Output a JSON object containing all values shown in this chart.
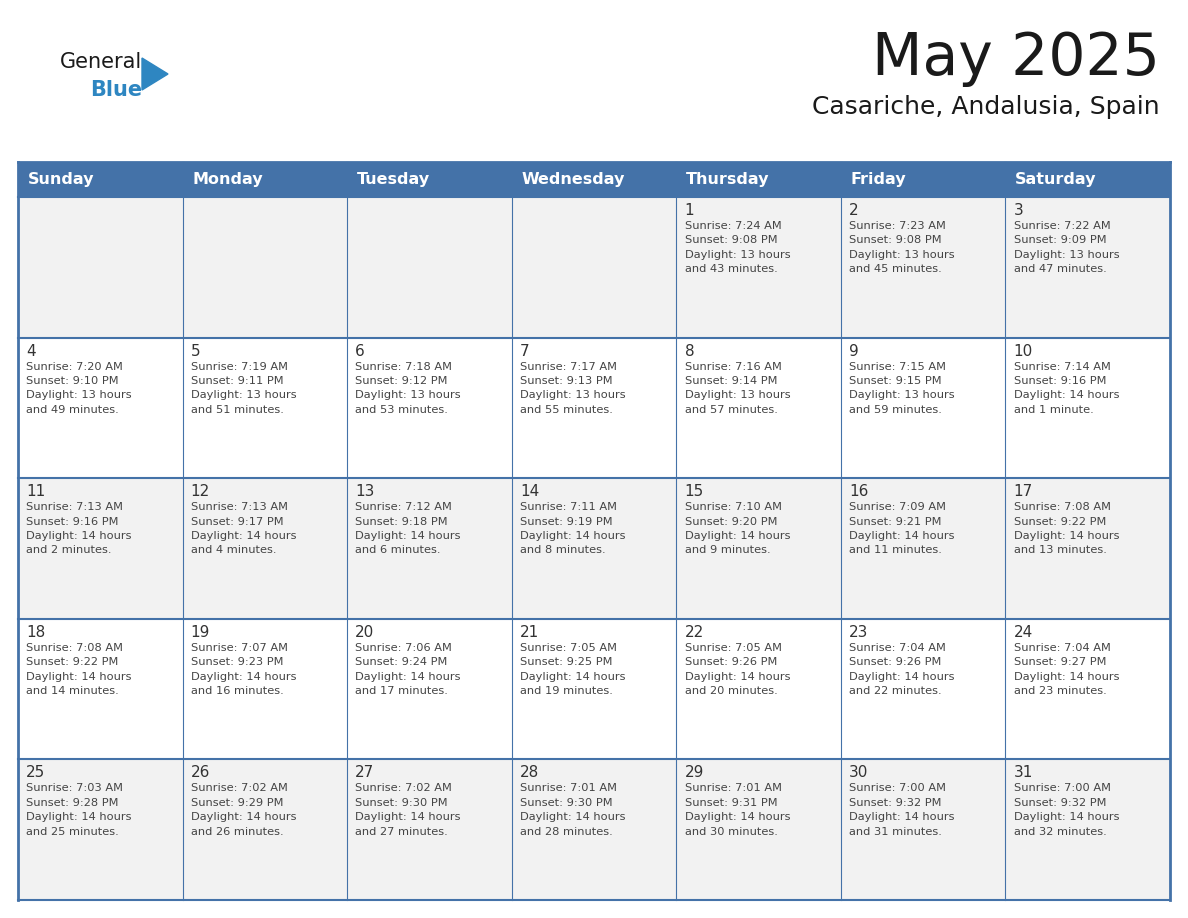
{
  "title": "May 2025",
  "subtitle": "Casariche, Andalusia, Spain",
  "header_bg": "#4472a8",
  "header_text": "#ffffff",
  "row_bg_light": "#f2f2f2",
  "row_bg_white": "#ffffff",
  "border_color": "#4472a8",
  "sep_color": "#4472a8",
  "day_headers": [
    "Sunday",
    "Monday",
    "Tuesday",
    "Wednesday",
    "Thursday",
    "Friday",
    "Saturday"
  ],
  "title_color": "#1a1a1a",
  "subtitle_color": "#1a1a1a",
  "logo_general_color": "#1a1a1a",
  "logo_blue_color": "#2e86c1",
  "logo_triangle_color": "#2e86c1",
  "text_day_color": "#333333",
  "text_info_color": "#444444",
  "weeks": [
    [
      {
        "day": "",
        "text": ""
      },
      {
        "day": "",
        "text": ""
      },
      {
        "day": "",
        "text": ""
      },
      {
        "day": "",
        "text": ""
      },
      {
        "day": "1",
        "text": "Sunrise: 7:24 AM\nSunset: 9:08 PM\nDaylight: 13 hours\nand 43 minutes."
      },
      {
        "day": "2",
        "text": "Sunrise: 7:23 AM\nSunset: 9:08 PM\nDaylight: 13 hours\nand 45 minutes."
      },
      {
        "day": "3",
        "text": "Sunrise: 7:22 AM\nSunset: 9:09 PM\nDaylight: 13 hours\nand 47 minutes."
      }
    ],
    [
      {
        "day": "4",
        "text": "Sunrise: 7:20 AM\nSunset: 9:10 PM\nDaylight: 13 hours\nand 49 minutes."
      },
      {
        "day": "5",
        "text": "Sunrise: 7:19 AM\nSunset: 9:11 PM\nDaylight: 13 hours\nand 51 minutes."
      },
      {
        "day": "6",
        "text": "Sunrise: 7:18 AM\nSunset: 9:12 PM\nDaylight: 13 hours\nand 53 minutes."
      },
      {
        "day": "7",
        "text": "Sunrise: 7:17 AM\nSunset: 9:13 PM\nDaylight: 13 hours\nand 55 minutes."
      },
      {
        "day": "8",
        "text": "Sunrise: 7:16 AM\nSunset: 9:14 PM\nDaylight: 13 hours\nand 57 minutes."
      },
      {
        "day": "9",
        "text": "Sunrise: 7:15 AM\nSunset: 9:15 PM\nDaylight: 13 hours\nand 59 minutes."
      },
      {
        "day": "10",
        "text": "Sunrise: 7:14 AM\nSunset: 9:16 PM\nDaylight: 14 hours\nand 1 minute."
      }
    ],
    [
      {
        "day": "11",
        "text": "Sunrise: 7:13 AM\nSunset: 9:16 PM\nDaylight: 14 hours\nand 2 minutes."
      },
      {
        "day": "12",
        "text": "Sunrise: 7:13 AM\nSunset: 9:17 PM\nDaylight: 14 hours\nand 4 minutes."
      },
      {
        "day": "13",
        "text": "Sunrise: 7:12 AM\nSunset: 9:18 PM\nDaylight: 14 hours\nand 6 minutes."
      },
      {
        "day": "14",
        "text": "Sunrise: 7:11 AM\nSunset: 9:19 PM\nDaylight: 14 hours\nand 8 minutes."
      },
      {
        "day": "15",
        "text": "Sunrise: 7:10 AM\nSunset: 9:20 PM\nDaylight: 14 hours\nand 9 minutes."
      },
      {
        "day": "16",
        "text": "Sunrise: 7:09 AM\nSunset: 9:21 PM\nDaylight: 14 hours\nand 11 minutes."
      },
      {
        "day": "17",
        "text": "Sunrise: 7:08 AM\nSunset: 9:22 PM\nDaylight: 14 hours\nand 13 minutes."
      }
    ],
    [
      {
        "day": "18",
        "text": "Sunrise: 7:08 AM\nSunset: 9:22 PM\nDaylight: 14 hours\nand 14 minutes."
      },
      {
        "day": "19",
        "text": "Sunrise: 7:07 AM\nSunset: 9:23 PM\nDaylight: 14 hours\nand 16 minutes."
      },
      {
        "day": "20",
        "text": "Sunrise: 7:06 AM\nSunset: 9:24 PM\nDaylight: 14 hours\nand 17 minutes."
      },
      {
        "day": "21",
        "text": "Sunrise: 7:05 AM\nSunset: 9:25 PM\nDaylight: 14 hours\nand 19 minutes."
      },
      {
        "day": "22",
        "text": "Sunrise: 7:05 AM\nSunset: 9:26 PM\nDaylight: 14 hours\nand 20 minutes."
      },
      {
        "day": "23",
        "text": "Sunrise: 7:04 AM\nSunset: 9:26 PM\nDaylight: 14 hours\nand 22 minutes."
      },
      {
        "day": "24",
        "text": "Sunrise: 7:04 AM\nSunset: 9:27 PM\nDaylight: 14 hours\nand 23 minutes."
      }
    ],
    [
      {
        "day": "25",
        "text": "Sunrise: 7:03 AM\nSunset: 9:28 PM\nDaylight: 14 hours\nand 25 minutes."
      },
      {
        "day": "26",
        "text": "Sunrise: 7:02 AM\nSunset: 9:29 PM\nDaylight: 14 hours\nand 26 minutes."
      },
      {
        "day": "27",
        "text": "Sunrise: 7:02 AM\nSunset: 9:30 PM\nDaylight: 14 hours\nand 27 minutes."
      },
      {
        "day": "28",
        "text": "Sunrise: 7:01 AM\nSunset: 9:30 PM\nDaylight: 14 hours\nand 28 minutes."
      },
      {
        "day": "29",
        "text": "Sunrise: 7:01 AM\nSunset: 9:31 PM\nDaylight: 14 hours\nand 30 minutes."
      },
      {
        "day": "30",
        "text": "Sunrise: 7:00 AM\nSunset: 9:32 PM\nDaylight: 14 hours\nand 31 minutes."
      },
      {
        "day": "31",
        "text": "Sunrise: 7:00 AM\nSunset: 9:32 PM\nDaylight: 14 hours\nand 32 minutes."
      }
    ]
  ]
}
